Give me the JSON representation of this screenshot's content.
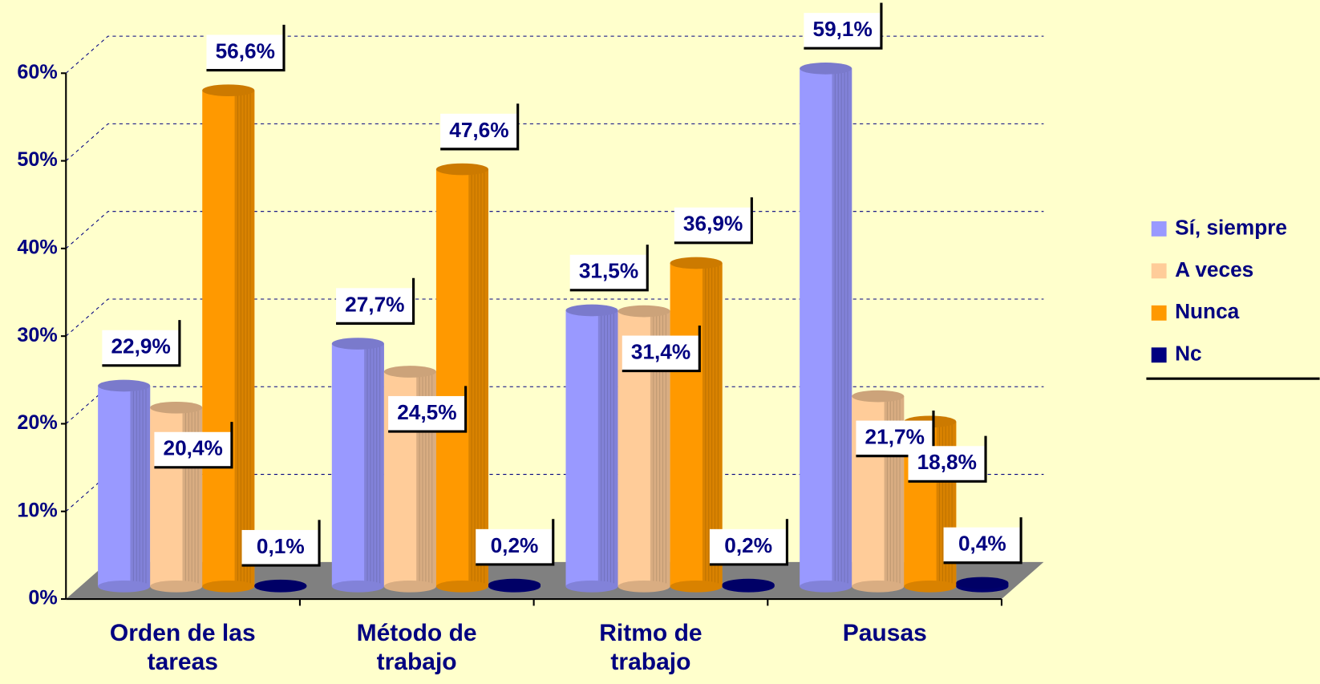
{
  "chart_data": {
    "type": "bar3d",
    "categories": [
      "Orden de las tareas",
      "Método de trabajo",
      "Ritmo de trabajo",
      "Pausas"
    ],
    "series": [
      {
        "name": "Sí, siempre",
        "color": "#9999ff",
        "values": [
          22.9,
          27.7,
          31.5,
          59.1
        ],
        "value_labels": [
          "22,9%",
          "27,7%",
          "31,5%",
          "59,1%"
        ]
      },
      {
        "name": "A veces",
        "color": "#ffcc99",
        "values": [
          20.4,
          24.5,
          31.4,
          21.7
        ],
        "value_labels": [
          "20,4%",
          "24,5%",
          "31,4%",
          "21,7%"
        ]
      },
      {
        "name": "Nunca",
        "color": "#ff9900",
        "values": [
          56.6,
          47.6,
          36.9,
          18.8
        ],
        "value_labels": [
          "56,6%",
          "47,6%",
          "36,9%",
          "18,8%"
        ]
      },
      {
        "name": "Nc",
        "color": "#000080",
        "values": [
          0.1,
          0.2,
          0.2,
          0.4
        ],
        "value_labels": [
          "0,1%",
          "0,2%",
          "0,2%",
          "0,4%"
        ]
      }
    ],
    "ylim": [
      0,
      60
    ],
    "yticks": [
      {
        "value": 0,
        "label": "0%"
      },
      {
        "value": 10,
        "label": "10%"
      },
      {
        "value": 20,
        "label": "20%"
      },
      {
        "value": 30,
        "label": "30%"
      },
      {
        "value": 40,
        "label": "40%"
      },
      {
        "value": 50,
        "label": "50%"
      },
      {
        "value": 60,
        "label": "60%"
      }
    ],
    "grid": true,
    "legend": "right"
  }
}
